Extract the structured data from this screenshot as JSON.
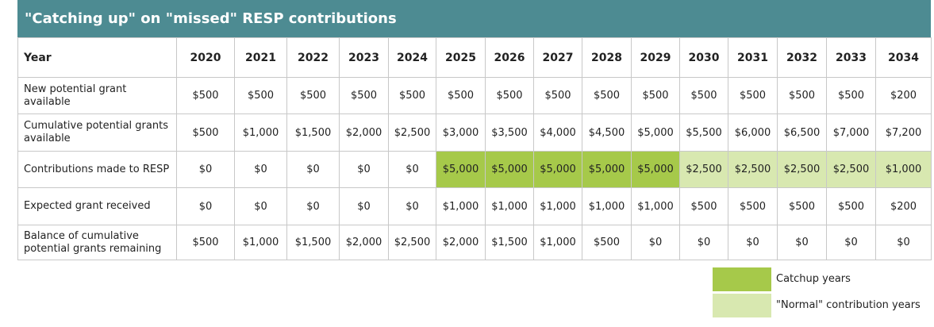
{
  "header": {
    "title": "\"Catching up\" on \"missed\" RESP contributions"
  },
  "table": {
    "columns": [
      "Year",
      "2020",
      "2021",
      "2022",
      "2023",
      "2024",
      "2025",
      "2026",
      "2027",
      "2028",
      "2029",
      "2030",
      "2031",
      "2032",
      "2033",
      "2034"
    ],
    "rows": [
      [
        "New potential grant available",
        "$500",
        "$500",
        "$500",
        "$500",
        "$500",
        "$500",
        "$500",
        "$500",
        "$500",
        "$500",
        "$500",
        "$500",
        "$500",
        "$500",
        "$200"
      ],
      [
        "Cumulative potential grants available",
        "$500",
        "$1,000",
        "$1,500",
        "$2,000",
        "$2,500",
        "$3,000",
        "$3,500",
        "$4,000",
        "$4,500",
        "$5,000",
        "$5,500",
        "$6,000",
        "$6,500",
        "$7,000",
        "$7,200"
      ],
      [
        "Contributions made to RESP",
        "$0",
        "$0",
        "$0",
        "$0",
        "$0",
        "$5,000",
        "$5,000",
        "$5,000",
        "$5,000",
        "$5,000",
        "$2,500",
        "$2,500",
        "$2,500",
        "$2,500",
        "$1,000"
      ],
      [
        "Expected grant received",
        "$0",
        "$0",
        "$0",
        "$0",
        "$0",
        "$1,000",
        "$1,000",
        "$1,000",
        "$1,000",
        "$1,000",
        "$500",
        "$500",
        "$500",
        "$500",
        "$200"
      ],
      [
        "Balance of cumulative potential grants remaining",
        "$500",
        "$1,000",
        "$1,500",
        "$2,000",
        "$2,500",
        "$2,000",
        "$1,500",
        "$1,000",
        "$500",
        "$0",
        "$0",
        "$0",
        "$0",
        "$0",
        "$0"
      ]
    ]
  },
  "legend": [
    {
      "label": "Catchup years",
      "color": "#a6c94a"
    },
    {
      "label": "\"Normal\" contribution years",
      "color": "#d8e8b0"
    }
  ]
}
